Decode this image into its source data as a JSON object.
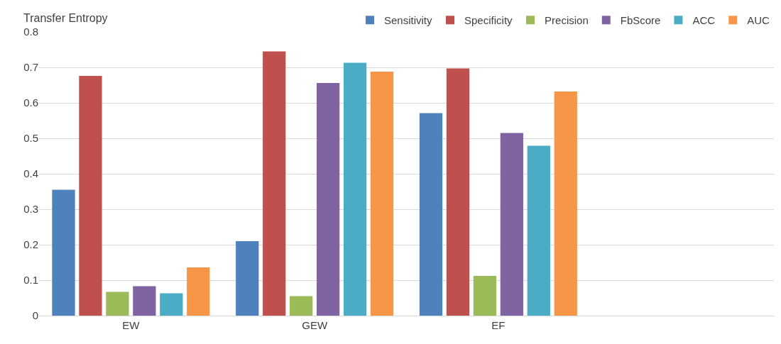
{
  "chart_data": {
    "type": "bar",
    "title": "Transfer Entropy",
    "categories": [
      "EW",
      "GEW",
      "EF",
      null
    ],
    "series": [
      {
        "name": "Sensitivity",
        "color": "#4f81bd",
        "values": [
          0.355,
          0.21,
          0.571,
          null
        ]
      },
      {
        "name": "Specificity",
        "color": "#c0504d",
        "values": [
          0.676,
          0.745,
          0.697,
          null
        ]
      },
      {
        "name": "Precision",
        "color": "#9bbb59",
        "values": [
          0.067,
          0.055,
          0.112,
          null
        ]
      },
      {
        "name": "FbScore",
        "color": "#8064a2",
        "values": [
          0.083,
          0.656,
          0.515,
          null
        ]
      },
      {
        "name": "ACC",
        "color": "#4bacc6",
        "values": [
          0.063,
          0.713,
          0.479,
          null
        ]
      },
      {
        "name": "AUC",
        "color": "#f79646",
        "values": [
          0.136,
          0.688,
          0.632,
          null
        ]
      }
    ],
    "ylim": [
      0,
      0.8
    ],
    "yticks": [
      0,
      0.1,
      0.2,
      0.3,
      0.4,
      0.5,
      0.6,
      0.7,
      0.8
    ],
    "grid": "y",
    "legend": "top"
  }
}
